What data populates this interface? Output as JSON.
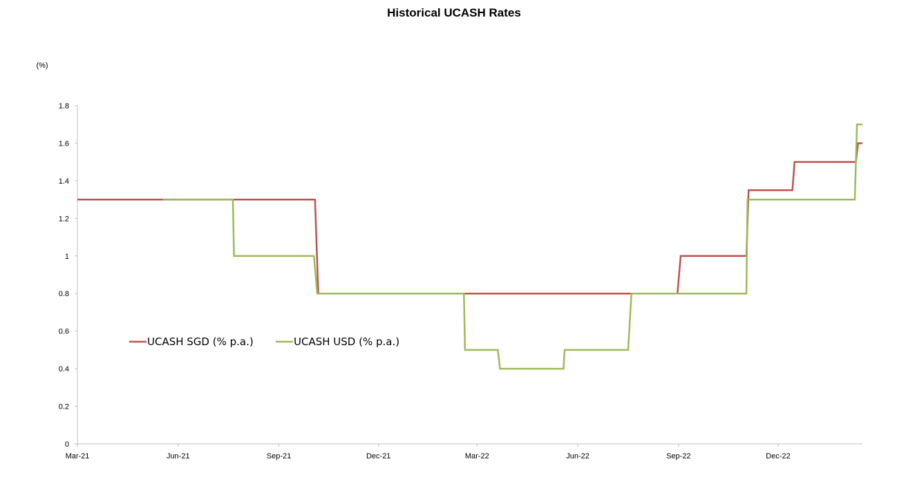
{
  "chart_data": {
    "type": "line",
    "title": "Historical UCASH Rates",
    "unit_label": "(%)",
    "xlabel": "",
    "ylabel": "",
    "x_range": [
      "2021-03-01",
      "2023-02-16"
    ],
    "ylim": [
      0,
      1.8
    ],
    "y_ticks": [
      0,
      0.2,
      0.4,
      0.6,
      0.8,
      1,
      1.2,
      1.4,
      1.6,
      1.8
    ],
    "x_ticks": [
      {
        "date": "2021-03-01",
        "label": "Mar-21"
      },
      {
        "date": "2021-06-01",
        "label": "Jun-21"
      },
      {
        "date": "2021-09-01",
        "label": "Sep-21"
      },
      {
        "date": "2021-12-01",
        "label": "Dec-21"
      },
      {
        "date": "2022-03-01",
        "label": "Mar-22"
      },
      {
        "date": "2022-06-01",
        "label": "Jun-22"
      },
      {
        "date": "2022-09-01",
        "label": "Sep-22"
      },
      {
        "date": "2022-12-01",
        "label": "Dec-22"
      }
    ],
    "grid": false,
    "legend_position": "center-left",
    "step_lines": true,
    "series": [
      {
        "name": "UCASH SGD (% p.a.)",
        "color": "#c0504d",
        "points": [
          {
            "date": "2021-03-01",
            "value": 1.3
          },
          {
            "date": "2021-05-18",
            "value": 1.3
          },
          {
            "date": "2021-10-04",
            "value": 1.3
          },
          {
            "date": "2021-10-07",
            "value": 0.8
          },
          {
            "date": "2022-08-31",
            "value": 0.8
          },
          {
            "date": "2022-09-03",
            "value": 1.0
          },
          {
            "date": "2022-11-02",
            "value": 1.0
          },
          {
            "date": "2022-11-04",
            "value": 1.35
          },
          {
            "date": "2022-12-14",
            "value": 1.35
          },
          {
            "date": "2022-12-16",
            "value": 1.5
          },
          {
            "date": "2023-02-10",
            "value": 1.5
          },
          {
            "date": "2023-02-12",
            "value": 1.6
          },
          {
            "date": "2023-02-16",
            "value": 1.6
          }
        ]
      },
      {
        "name": "UCASH USD (% p.a.)",
        "color": "#9bbb59",
        "points": [
          {
            "date": "2021-05-18",
            "value": 1.3
          },
          {
            "date": "2021-07-21",
            "value": 1.3
          },
          {
            "date": "2021-07-22",
            "value": 1.0
          },
          {
            "date": "2021-10-03",
            "value": 1.0
          },
          {
            "date": "2021-10-06",
            "value": 0.8
          },
          {
            "date": "2022-02-17",
            "value": 0.8
          },
          {
            "date": "2022-02-18",
            "value": 0.5
          },
          {
            "date": "2022-03-20",
            "value": 0.5
          },
          {
            "date": "2022-03-22",
            "value": 0.4
          },
          {
            "date": "2022-05-19",
            "value": 0.4
          },
          {
            "date": "2022-05-20",
            "value": 0.5
          },
          {
            "date": "2022-07-17",
            "value": 0.5
          },
          {
            "date": "2022-07-20",
            "value": 0.8
          },
          {
            "date": "2022-11-02",
            "value": 0.8
          },
          {
            "date": "2022-11-03",
            "value": 1.3
          },
          {
            "date": "2023-02-09",
            "value": 1.3
          },
          {
            "date": "2023-02-11",
            "value": 1.7
          },
          {
            "date": "2023-02-16",
            "value": 1.7
          }
        ]
      }
    ]
  }
}
